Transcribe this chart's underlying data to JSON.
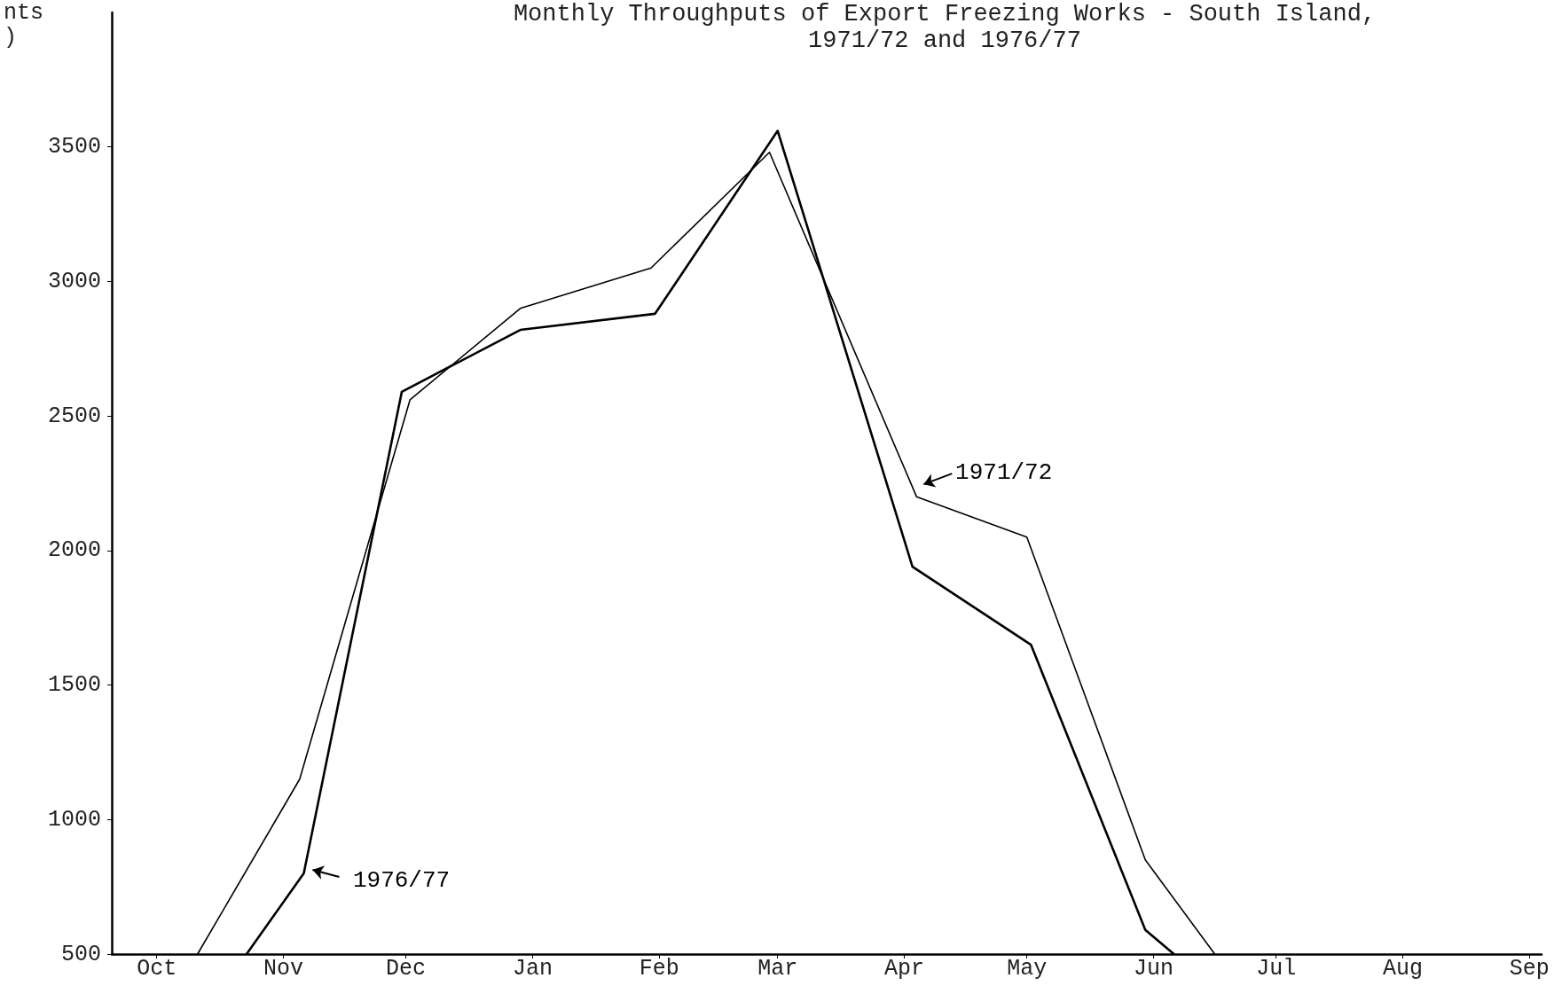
{
  "chart_data": {
    "type": "line",
    "title": "Monthly Throughputs of Export Freezing Works - South Island,\n1971/72 and 1976/77",
    "ylabel": "nts\n)",
    "series": [
      {
        "name": "1971/72",
        "color": "#000000",
        "x": [
          "1971-10-11",
          "1971-11-05",
          "1971-12-02",
          "1971-12-29",
          "1972-01-30",
          "1972-02-28",
          "1972-04-04",
          "1972-05-01",
          "1972-05-30",
          "1972-06-16"
        ],
        "values": [
          500,
          1150,
          2560,
          2900,
          3050,
          3480,
          2200,
          2050,
          850,
          500
        ]
      },
      {
        "name": "1976/77",
        "color": "#000000",
        "x": [
          "1971-10-23",
          "1971-11-06",
          "1971-11-30",
          "1971-12-29",
          "1972-01-31",
          "1972-03-01",
          "1972-04-03",
          "1972-05-02",
          "1972-05-30",
          "1972-06-06"
        ],
        "values": [
          500,
          800,
          2590,
          2820,
          2880,
          3560,
          1940,
          1650,
          590,
          500
        ]
      }
    ],
    "xlim": [
      "1971-09-20",
      "1972-09-04"
    ],
    "xticks": [
      {
        "value": "1971-10-01",
        "label": "Oct"
      },
      {
        "value": "1971-11-01",
        "label": "Nov"
      },
      {
        "value": "1971-12-01",
        "label": "Dec"
      },
      {
        "value": "1972-01-01",
        "label": "Jan"
      },
      {
        "value": "1972-02-01",
        "label": "Feb"
      },
      {
        "value": "1972-03-01",
        "label": "Mar"
      },
      {
        "value": "1972-04-01",
        "label": "Apr"
      },
      {
        "value": "1972-05-01",
        "label": "May"
      },
      {
        "value": "1972-06-01",
        "label": "Jun"
      },
      {
        "value": "1972-07-01",
        "label": "Jul"
      },
      {
        "value": "1972-08-01",
        "label": "Aug"
      },
      {
        "value": "1972-09-01",
        "label": "Sep"
      }
    ],
    "ylim": [
      500,
      4000
    ],
    "yticks": [
      500,
      1000,
      1500,
      2000,
      2500,
      3000,
      3500
    ],
    "grid": false,
    "legend": "center",
    "marker": "none",
    "line_style": "solid"
  }
}
